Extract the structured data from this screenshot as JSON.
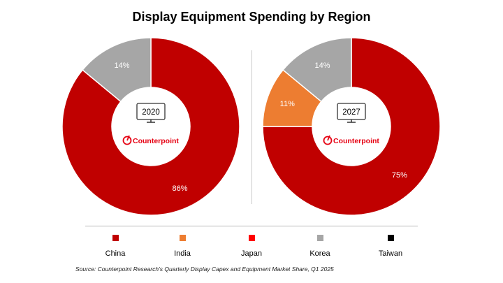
{
  "title": "Display Equipment Spending by Region",
  "chart_data": [
    {
      "type": "pie",
      "variant": "donut",
      "center_label": "2020",
      "categories": [
        "China",
        "India",
        "Japan",
        "Korea",
        "Taiwan"
      ],
      "values": [
        86,
        0,
        0,
        14,
        0
      ],
      "labels": [
        "86%",
        "",
        "",
        "14%",
        ""
      ]
    },
    {
      "type": "pie",
      "variant": "donut",
      "center_label": "2027",
      "categories": [
        "China",
        "India",
        "Japan",
        "Korea",
        "Taiwan"
      ],
      "values": [
        75,
        11,
        0,
        14,
        0
      ],
      "labels": [
        "75%",
        "11%",
        "",
        "14%",
        ""
      ]
    }
  ],
  "brand": "Counterpoint",
  "legend": [
    {
      "label": "China",
      "color": "#c00000"
    },
    {
      "label": "India",
      "color": "#ed7d31"
    },
    {
      "label": "Japan",
      "color": "#ff0000"
    },
    {
      "label": "Korea",
      "color": "#a6a6a6"
    },
    {
      "label": "Taiwan",
      "color": "#000000"
    }
  ],
  "source": "Source: Counterpoint Research’s Quarterly Display Capex and Equipment Market Share, Q1 2025"
}
